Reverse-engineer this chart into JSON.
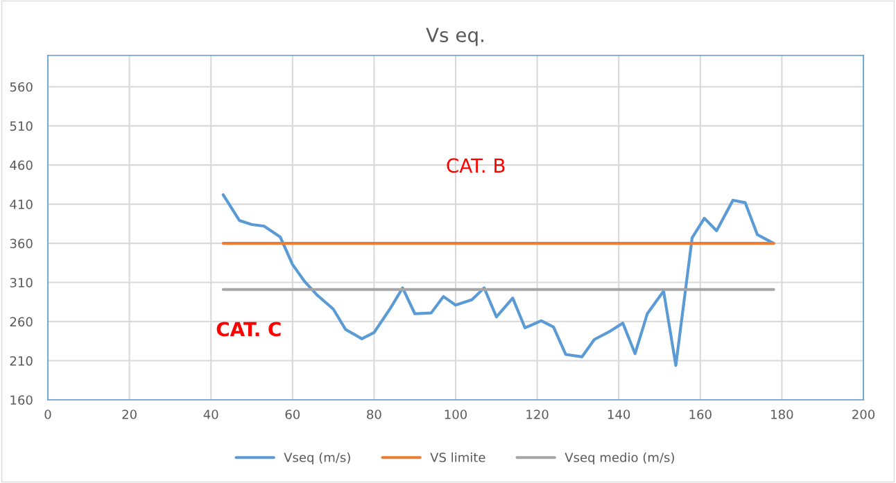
{
  "chart_data": {
    "type": "line",
    "title": "Vs eq.",
    "xlim": [
      0,
      200
    ],
    "xticks": [
      0,
      20,
      40,
      60,
      80,
      100,
      120,
      140,
      160,
      180,
      200
    ],
    "ylim": [
      160,
      600
    ],
    "yticks": [
      160,
      210,
      260,
      310,
      360,
      410,
      460,
      510,
      560
    ],
    "grid": true,
    "legend": "bottom",
    "marker": "none",
    "line_style": "solid",
    "series": [
      {
        "name": "Vseq (m/s)",
        "color": "#5b9bd5",
        "x": [
          43,
          47,
          50,
          53,
          57,
          60,
          63,
          66,
          70,
          73,
          77,
          80,
          84,
          87,
          90,
          94,
          97,
          100,
          104,
          107,
          110,
          114,
          117,
          121,
          124,
          127,
          131,
          134,
          138,
          141,
          144,
          147,
          151,
          154,
          158,
          161,
          164,
          168,
          171,
          174,
          178
        ],
        "values": [
          422,
          389,
          384,
          382,
          368,
          333,
          311,
          294,
          276,
          250,
          238,
          246,
          277,
          303,
          270,
          271,
          292,
          281,
          288,
          303,
          266,
          290,
          252,
          261,
          253,
          218,
          215,
          237,
          248,
          258,
          219,
          270,
          299,
          204,
          367,
          392,
          376,
          415,
          412,
          371,
          360
        ]
      },
      {
        "name": "VS limite",
        "color": "#ed7d31",
        "x": [
          43,
          178
        ],
        "values": [
          360,
          360
        ]
      },
      {
        "name": "Vseq medio (m/s)",
        "color": "#a5a5a5",
        "x": [
          43,
          178
        ],
        "values": [
          301,
          301
        ]
      }
    ],
    "annotations": [
      "CAT. B",
      "CAT. C"
    ]
  }
}
